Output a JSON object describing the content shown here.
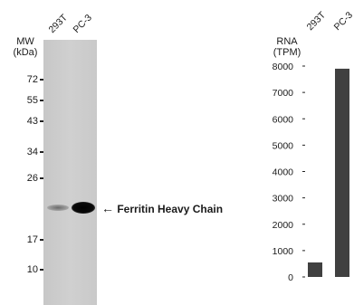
{
  "blot": {
    "lanes": [
      "293T",
      "PC-3"
    ],
    "mw_header": [
      "MW",
      "(kDa)"
    ],
    "markers": [
      "72",
      "55",
      "43",
      "34",
      "26",
      "17",
      "10"
    ],
    "target": "Ferritin Heavy Chain",
    "target_arrow": "←",
    "band_intensity": {
      "293T": 0.2,
      "PC-3": 1.0
    }
  },
  "chart_data": {
    "type": "bar",
    "title": "",
    "ylabel_lines": [
      "RNA",
      "(TPM)"
    ],
    "categories": [
      "293T",
      "PC-3"
    ],
    "values": [
      550,
      7900
    ],
    "ylim": [
      0,
      8000
    ],
    "yticks": [
      0,
      1000,
      2000,
      3000,
      4000,
      5000,
      6000,
      7000,
      8000
    ],
    "grid": false,
    "bar_color": "#404040"
  }
}
